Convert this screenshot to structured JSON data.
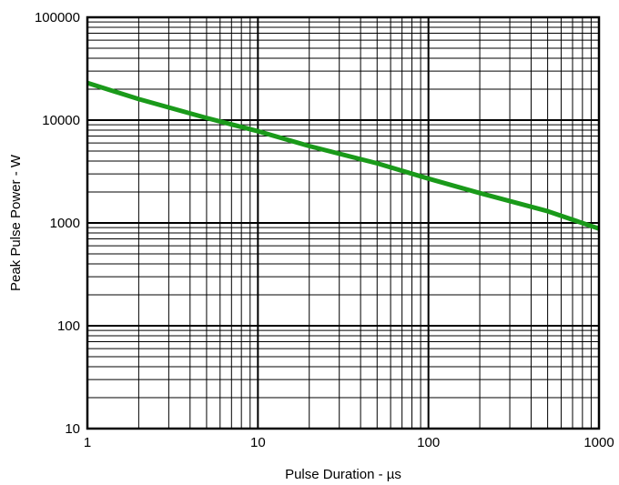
{
  "chart_data": {
    "type": "line",
    "xlabel": "Pulse Duration - µs",
    "ylabel": "Peak Pulse Power - W",
    "x_scale": "log",
    "y_scale": "log",
    "xlim": [
      1,
      1000
    ],
    "ylim": [
      10,
      100000
    ],
    "x_ticks": [
      "1",
      "10",
      "100",
      "1000"
    ],
    "y_ticks": [
      "10",
      "100",
      "1000",
      "10000",
      "100000"
    ],
    "grid": true,
    "line_color": "#1a9a1a",
    "series": [
      {
        "x": [
          1,
          2,
          5,
          10,
          20,
          50,
          100,
          200,
          500,
          1000
        ],
        "y": [
          23000,
          16000,
          10500,
          7800,
          5600,
          3800,
          2700,
          1950,
          1300,
          880
        ]
      }
    ]
  }
}
